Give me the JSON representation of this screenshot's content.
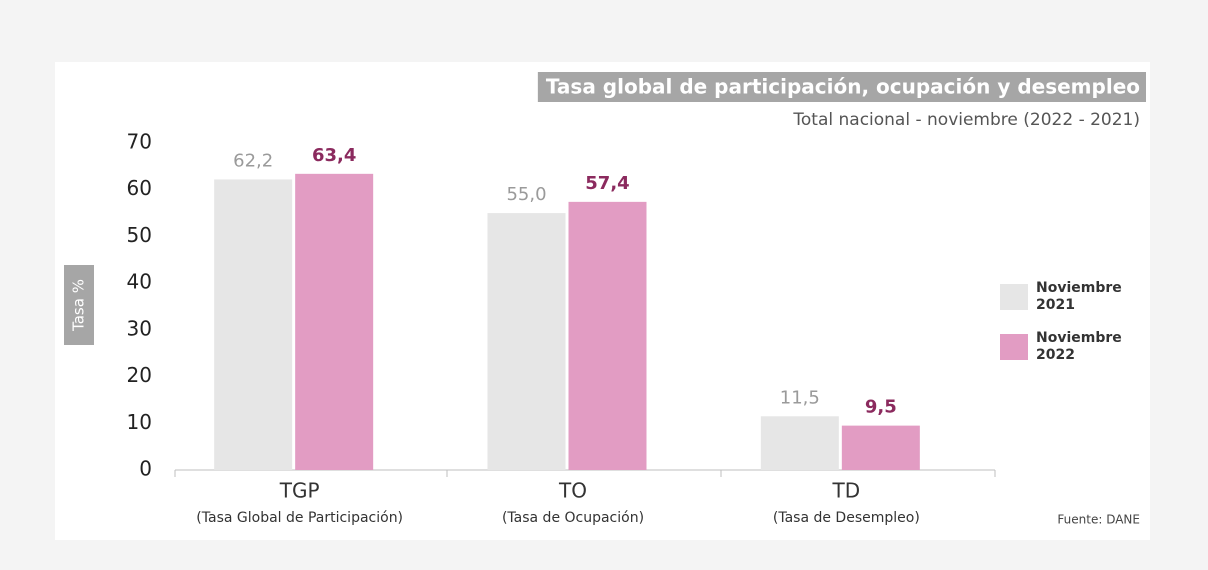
{
  "chart_data": {
    "type": "bar",
    "title": "Tasa global de participación, ocupación y desempleo",
    "subtitle": "Total nacional - noviembre (2022 - 2021)",
    "y_label": "Tasa %",
    "source": "Fuente: DANE",
    "categories": [
      "TGP",
      "TO",
      "TD"
    ],
    "category_descriptions": [
      "(Tasa Global de Participación)",
      "(Tasa de Ocupación)",
      "(Tasa de Desempleo)"
    ],
    "series": [
      {
        "name": "Noviembre 2021",
        "color": "#e6e6e6",
        "values": [
          62.2,
          55.0,
          11.5
        ],
        "value_labels": [
          "62,2",
          "55,0",
          "11,5"
        ]
      },
      {
        "name": "Noviembre 2022",
        "color": "#e29cc3",
        "values": [
          63.4,
          57.4,
          9.5
        ],
        "value_labels": [
          "63,4",
          "57,4",
          "9,5"
        ]
      }
    ],
    "ylim": [
      0,
      70
    ],
    "yticks": [
      0,
      10,
      20,
      30,
      40,
      50,
      60,
      70
    ],
    "grid": false,
    "legend": "right"
  }
}
